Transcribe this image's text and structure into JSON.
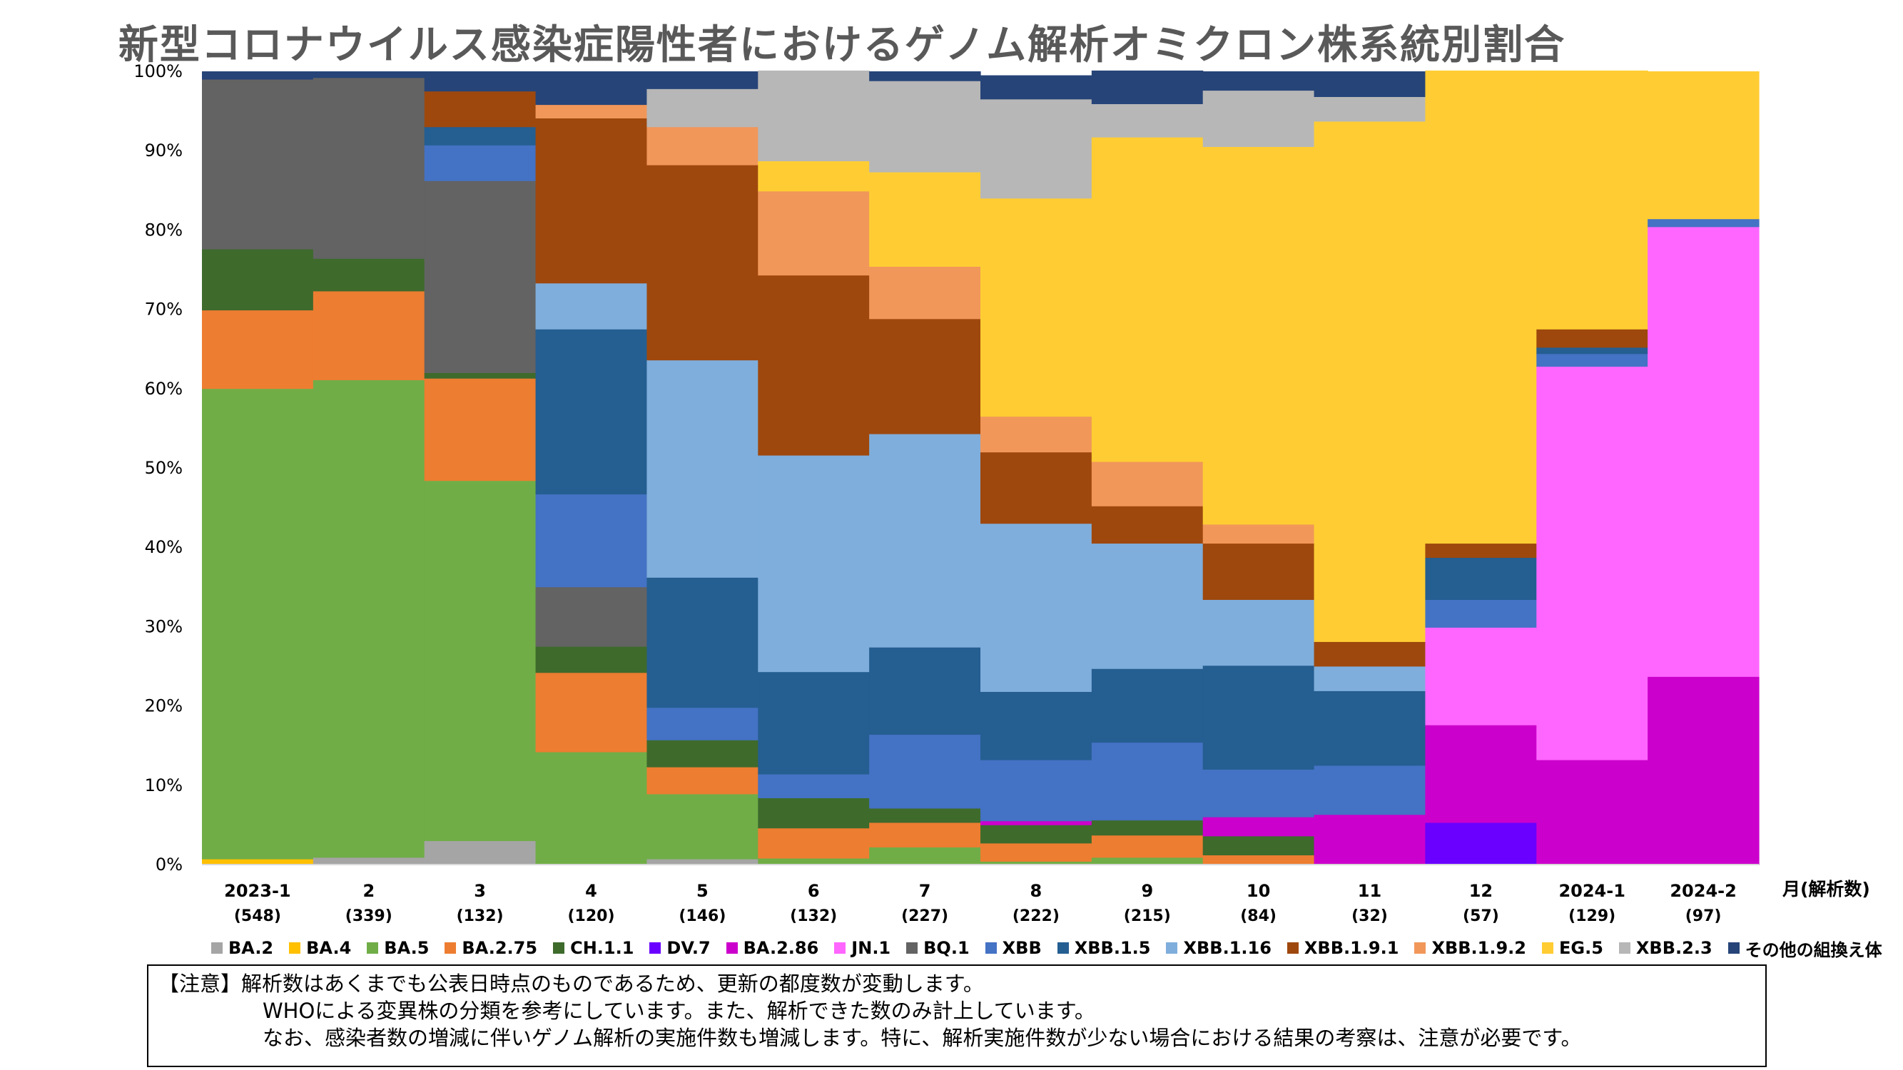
{
  "chart_data": {
    "type": "bar",
    "stacked": true,
    "title": "新型コロナウイルス感染症陽性者におけるゲノム解析オミクロン株系統別割合",
    "categories": [
      "2023-1",
      "2",
      "3",
      "4",
      "5",
      "6",
      "7",
      "8",
      "9",
      "10",
      "11",
      "12",
      "2024-1",
      "2024-2"
    ],
    "counts": [
      "(548)",
      "(339)",
      "(132)",
      "(120)",
      "(146)",
      "(132)",
      "(227)",
      "(222)",
      "(215)",
      "(84)",
      "(32)",
      "(57)",
      "(129)",
      "(97)"
    ],
    "xlabel": "月(解析数)",
    "ylabel": "",
    "ylim": [
      0,
      100
    ],
    "yticks": [
      "0%",
      "10%",
      "20%",
      "30%",
      "40%",
      "50%",
      "60%",
      "70%",
      "80%",
      "90%",
      "100%"
    ],
    "legend_position": "bottom",
    "grid": false,
    "series": [
      {
        "name": "BA.2",
        "color": "#A5A5A5",
        "values": [
          0,
          0.9,
          3.0,
          0,
          0.7,
          0,
          0,
          0,
          0,
          0,
          0,
          0,
          0,
          0
        ]
      },
      {
        "name": "BA.4",
        "color": "#FFC000",
        "values": [
          0.7,
          0,
          0,
          0,
          0,
          0,
          0,
          0,
          0,
          0,
          0,
          0,
          0,
          0
        ]
      },
      {
        "name": "BA.5",
        "color": "#70AD47",
        "values": [
          59.3,
          60.2,
          45.4,
          14.2,
          8.2,
          0.8,
          2.2,
          0.4,
          0.9,
          0,
          0,
          0,
          0,
          0
        ]
      },
      {
        "name": "BA.2.75",
        "color": "#ED7D31",
        "values": [
          9.9,
          11.2,
          12.9,
          10.0,
          3.4,
          3.8,
          3.1,
          2.3,
          2.8,
          1.2,
          0,
          0,
          0,
          0
        ]
      },
      {
        "name": "CH.1.1",
        "color": "#3E6A2C",
        "values": [
          7.7,
          4.1,
          0.7,
          3.3,
          3.4,
          3.8,
          1.8,
          2.3,
          1.9,
          2.4,
          0,
          0,
          0,
          0
        ]
      },
      {
        "name": "DV.7",
        "color": "#6A00FF",
        "values": [
          0,
          0,
          0,
          0,
          0,
          0,
          0,
          0,
          0,
          0,
          0,
          5.3,
          0,
          0
        ]
      },
      {
        "name": "BA.2.86",
        "color": "#CC00CC",
        "values": [
          0,
          0,
          0,
          0,
          0,
          0,
          0,
          0.5,
          0,
          2.4,
          6.3,
          12.3,
          13.2,
          23.7
        ]
      },
      {
        "name": "JN.1",
        "color": "#FF66FF",
        "values": [
          0,
          0,
          0,
          0,
          0,
          0,
          0,
          0,
          0,
          0,
          0,
          12.3,
          49.6,
          56.7
        ]
      },
      {
        "name": "BQ.1",
        "color": "#636363",
        "values": [
          21.4,
          22.8,
          24.2,
          7.5,
          0,
          0,
          0,
          0,
          0,
          0,
          0,
          0,
          0,
          0
        ]
      },
      {
        "name": "XBB",
        "color": "#4472C4",
        "values": [
          0,
          0,
          4.5,
          11.7,
          4.1,
          3.0,
          9.3,
          7.7,
          9.8,
          6.0,
          6.2,
          3.5,
          1.6,
          1.0
        ]
      },
      {
        "name": "XBB.1.5",
        "color": "#255E91",
        "values": [
          0,
          0,
          2.3,
          20.8,
          16.4,
          12.9,
          11.0,
          8.6,
          9.3,
          13.1,
          9.4,
          5.3,
          0.8,
          0
        ]
      },
      {
        "name": "XBB.1.16",
        "color": "#7FAEDC",
        "values": [
          0,
          0,
          0,
          5.8,
          27.4,
          27.3,
          26.9,
          21.2,
          15.8,
          8.3,
          3.1,
          0,
          0,
          0
        ]
      },
      {
        "name": "XBB.1.9.1",
        "color": "#9E480E",
        "values": [
          0,
          0,
          4.5,
          20.8,
          24.6,
          22.7,
          14.5,
          9.0,
          4.7,
          7.1,
          3.1,
          1.8,
          2.3,
          0
        ]
      },
      {
        "name": "XBB.1.9.2",
        "color": "#F1975A",
        "values": [
          0,
          0,
          0,
          1.7,
          4.8,
          10.6,
          6.6,
          4.5,
          5.6,
          2.4,
          0,
          0,
          0,
          0
        ]
      },
      {
        "name": "EG.5",
        "color": "#FFCD33",
        "values": [
          0,
          0,
          0,
          0,
          0,
          3.8,
          11.9,
          27.5,
          40.9,
          47.6,
          65.6,
          59.6,
          32.6,
          18.6
        ]
      },
      {
        "name": "XBB.2.3",
        "color": "#B7B7B7",
        "values": [
          0,
          0,
          0,
          0,
          4.8,
          11.4,
          11.5,
          12.5,
          4.2,
          7.1,
          3.1,
          0,
          0,
          0
        ]
      },
      {
        "name": "その他の組換え体",
        "color": "#264478",
        "values": [
          1.0,
          0.8,
          2.5,
          4.2,
          2.2,
          0,
          1.2,
          3.0,
          4.2,
          2.4,
          3.2,
          0,
          0,
          0
        ]
      }
    ]
  },
  "notes": {
    "prefix": "【注意】",
    "line1": "解析数はあくまでも公表日時点のものであるため、更新の都度数が変動します。",
    "line2": "WHOによる変異株の分類を参考にしています。また、解析できた数のみ計上しています。",
    "line3": "なお、感染者数の増減に伴いゲノム解析の実施件数も増減します。特に、解析実施件数が少ない場合における結果の考察は、注意が必要です。"
  }
}
